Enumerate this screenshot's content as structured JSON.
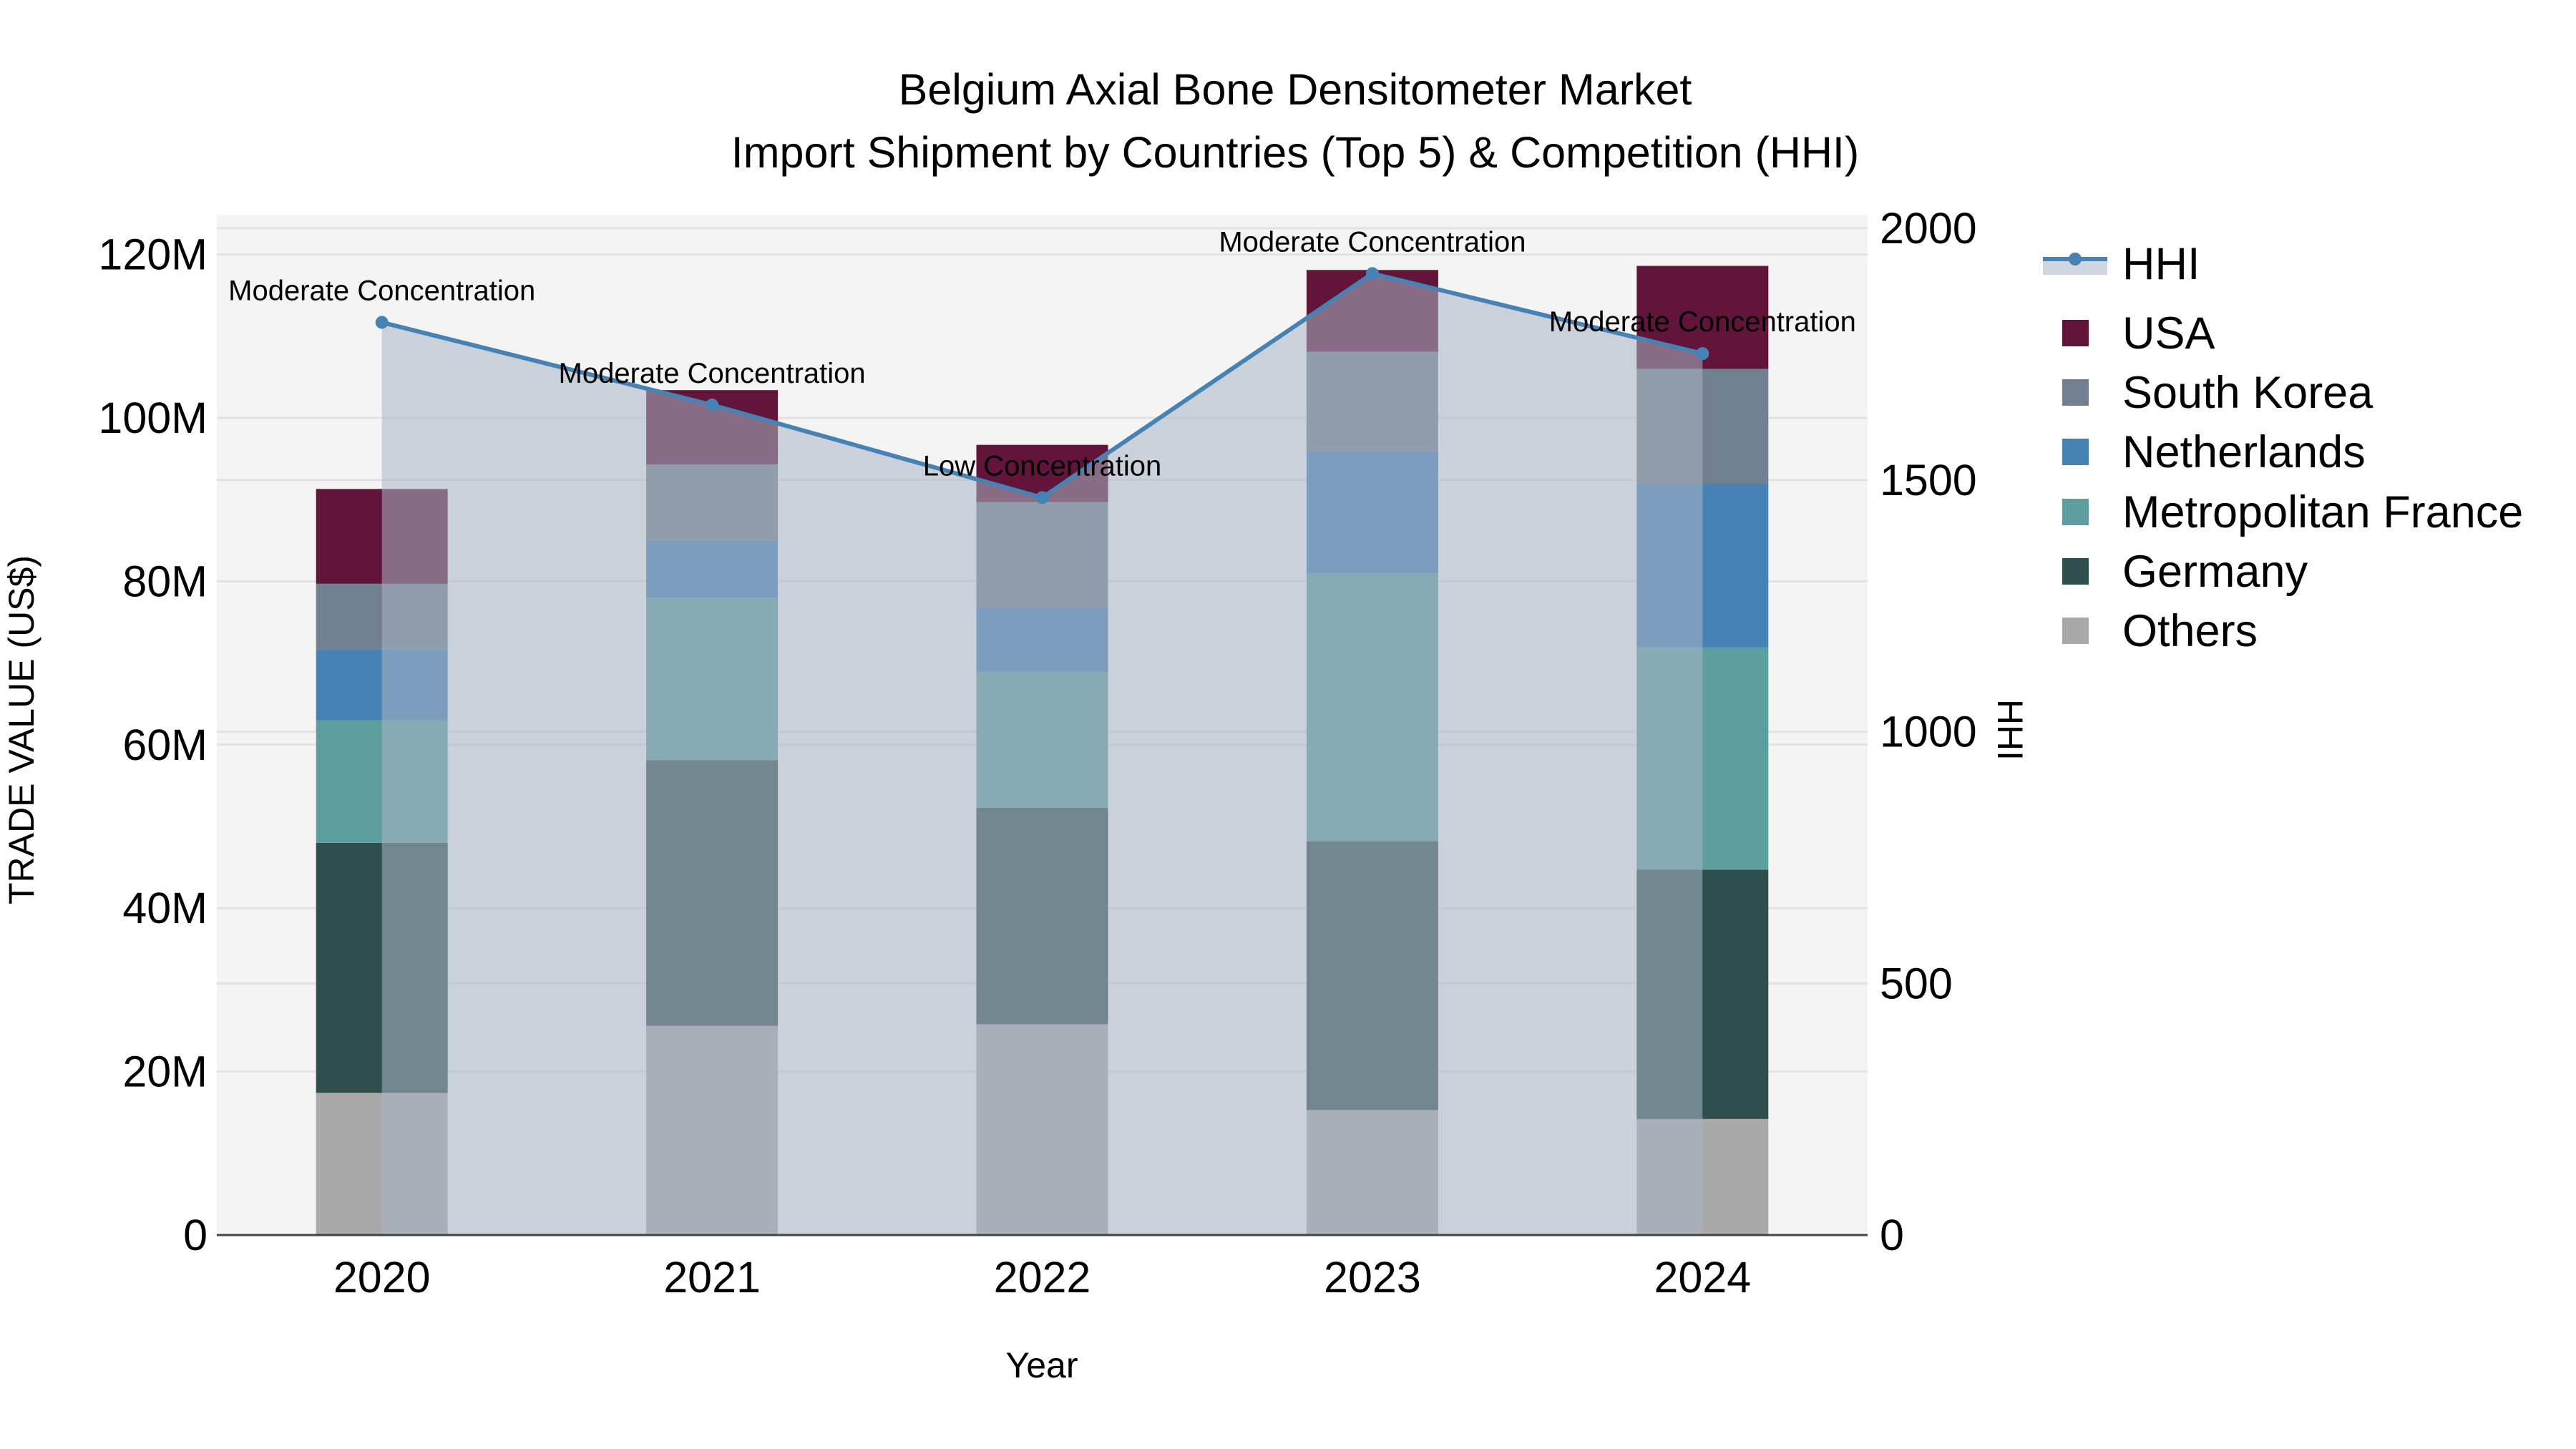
{
  "title": {
    "line1": "Belgium Axial Bone Densitometer Market",
    "line2": "Import Shipment by Countries (Top 5) & Competition (HHI)"
  },
  "axes": {
    "x_title": "Year",
    "y_left_title": "TRADE VALUE (US$)",
    "y_right_title": "HHI",
    "y_left_ticks": [
      "0",
      "20M",
      "40M",
      "60M",
      "80M",
      "100M",
      "120M"
    ],
    "y_right_ticks": [
      "0",
      "500",
      "1000",
      "1500",
      "2000"
    ]
  },
  "legend": {
    "items": [
      {
        "label": "HHI",
        "type": "line",
        "color": "#4682B4"
      },
      {
        "label": "USA",
        "type": "bar",
        "color": "#63143A"
      },
      {
        "label": "South Korea",
        "type": "bar",
        "color": "#708090"
      },
      {
        "label": "Netherlands",
        "type": "bar",
        "color": "#4682B4"
      },
      {
        "label": "Metropolitan France",
        "type": "bar",
        "color": "#5F9EA0"
      },
      {
        "label": "Germany",
        "type": "bar",
        "color": "#2F4F4F"
      },
      {
        "label": "Others",
        "type": "bar",
        "color": "#A9A9A9"
      }
    ]
  },
  "colors": {
    "plot_bg": "#F4F4F4",
    "grid": "#E2E2E2",
    "hhi_line": "#4682B4",
    "hhi_fill": "rgba(170,180,196,0.55)",
    "axis_line": "#444444"
  },
  "chart_data": {
    "type": "bar",
    "title": "Belgium Axial Bone Densitometer Market — Import Shipment by Countries (Top 5) & Competition (HHI)",
    "xlabel": "Year",
    "ylabel": "TRADE VALUE (US$)",
    "y2label": "HHI",
    "categories": [
      "2020",
      "2021",
      "2022",
      "2023",
      "2024"
    ],
    "stack_order_bottom_to_top": [
      "Others",
      "Germany",
      "Metropolitan France",
      "Netherlands",
      "South Korea",
      "USA"
    ],
    "series": [
      {
        "name": "Others",
        "color": "#A9A9A9",
        "values": [
          17.4,
          25.6,
          25.8,
          15.3,
          14.2
        ]
      },
      {
        "name": "Germany",
        "color": "#2F4F4F",
        "values": [
          30.6,
          32.5,
          26.5,
          32.9,
          30.5
        ]
      },
      {
        "name": "Metropolitan France",
        "color": "#5F9EA0",
        "values": [
          15.0,
          19.9,
          16.6,
          32.8,
          27.2
        ]
      },
      {
        "name": "Netherlands",
        "color": "#4682B4",
        "values": [
          8.7,
          7.0,
          7.9,
          14.9,
          20.0
        ]
      },
      {
        "name": "South Korea",
        "color": "#708090",
        "values": [
          8.0,
          9.3,
          12.9,
          12.2,
          14.1
        ]
      },
      {
        "name": "USA",
        "color": "#63143A",
        "values": [
          11.6,
          9.1,
          7.0,
          10.0,
          12.6
        ]
      }
    ],
    "units": "Million US$",
    "hhi": {
      "name": "HHI",
      "type": "line+area",
      "axis": "right",
      "values": [
        1813,
        1649,
        1465,
        1910,
        1751
      ],
      "labels": [
        "Moderate Concentration",
        "Moderate Concentration",
        "Low Concentration",
        "Moderate Concentration",
        "Moderate Concentration"
      ]
    },
    "ylim": [
      0,
      124
    ],
    "y2lim": [
      0,
      2000
    ],
    "grid": true,
    "legend_position": "right"
  }
}
